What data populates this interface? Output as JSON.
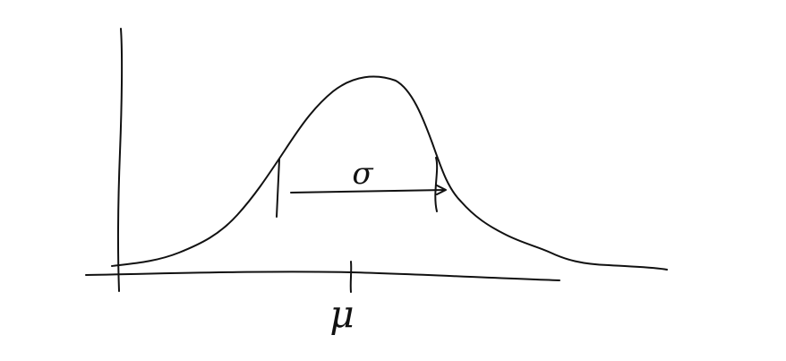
{
  "labels": {
    "mean": "μ",
    "sigma": "σ"
  }
}
